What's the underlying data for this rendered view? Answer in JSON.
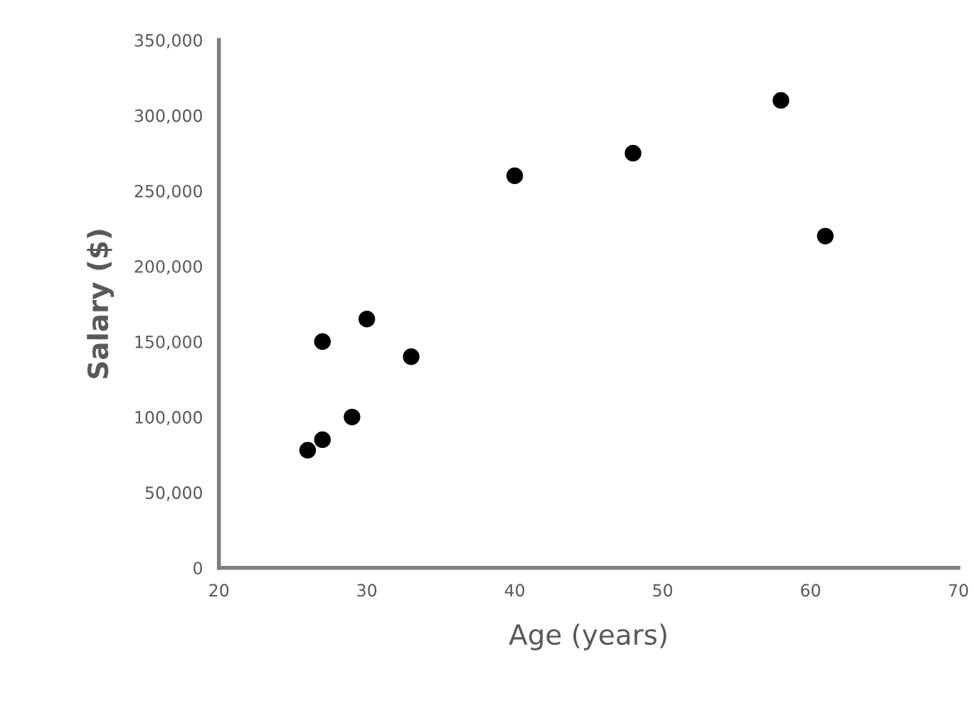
{
  "chart_data": {
    "type": "scatter",
    "xlabel": "Age (years)",
    "ylabel": "Salary ($)",
    "series": [
      {
        "color": "#000000",
        "x": [
          26,
          27,
          27,
          29,
          30,
          33,
          40,
          48,
          58,
          61
        ],
        "values": [
          78000,
          85000,
          150000,
          100000,
          165000,
          140000,
          260000,
          275000,
          310000,
          220000
        ]
      }
    ],
    "xlim": [
      20,
      70
    ],
    "ylim": [
      0,
      350000
    ],
    "xticks": [
      20,
      30,
      40,
      50,
      60,
      70
    ],
    "yticks": [
      0,
      {
        "value": 50000,
        "label": "50,000"
      },
      {
        "value": 100000,
        "label": "100,000"
      },
      {
        "value": 150000,
        "label": "150,000"
      },
      {
        "value": 200000,
        "label": "200,000"
      },
      {
        "value": 250000,
        "label": "250,000"
      },
      {
        "value": 300000,
        "label": "300,000"
      },
      {
        "value": 350000,
        "label": "350,000"
      }
    ],
    "grid": false,
    "legend": false,
    "marker": "circle"
  }
}
